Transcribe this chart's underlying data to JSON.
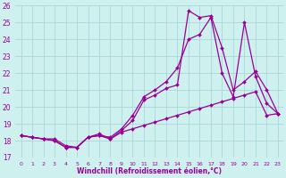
{
  "xlabel": "Windchill (Refroidissement éolien,°C)",
  "xlim_min": -0.5,
  "xlim_max": 23.5,
  "ylim_min": 17,
  "ylim_max": 26,
  "yticks": [
    17,
    18,
    19,
    20,
    21,
    22,
    23,
    24,
    25,
    26
  ],
  "xticks": [
    0,
    1,
    2,
    3,
    4,
    5,
    6,
    7,
    8,
    9,
    10,
    11,
    12,
    13,
    14,
    15,
    16,
    17,
    18,
    19,
    20,
    21,
    22,
    23
  ],
  "bg_color": "#cef0ee",
  "grid_color": "#a8d8d8",
  "line_color": "#990099",
  "series": [
    {
      "comment": "line1: peaks at 15~25.7, 16~25.3",
      "x": [
        0,
        1,
        2,
        3,
        4,
        5,
        6,
        7,
        8,
        9,
        10,
        11,
        12,
        13,
        14,
        15,
        16,
        17,
        18,
        19,
        20,
        21,
        22,
        23
      ],
      "y": [
        18.3,
        18.2,
        18.1,
        18.1,
        17.7,
        17.6,
        18.2,
        18.4,
        18.1,
        18.6,
        19.2,
        20.4,
        20.7,
        21.1,
        21.3,
        25.7,
        25.3,
        25.4,
        23.5,
        21.0,
        21.5,
        22.1,
        21.0,
        19.6
      ]
    },
    {
      "x": [
        0,
        1,
        2,
        3,
        4,
        5,
        6,
        7,
        8,
        9,
        10,
        11,
        12,
        13,
        14,
        15,
        16,
        17,
        18,
        19,
        20,
        21,
        22,
        23
      ],
      "y": [
        18.3,
        18.2,
        18.1,
        18.0,
        17.6,
        17.6,
        18.2,
        18.3,
        18.2,
        18.7,
        19.5,
        20.6,
        21.0,
        21.5,
        22.3,
        24.0,
        24.3,
        25.3,
        22.0,
        20.6,
        25.0,
        21.8,
        20.2,
        19.6
      ]
    },
    {
      "x": [
        0,
        1,
        2,
        3,
        4,
        5,
        6,
        7,
        8,
        9,
        10,
        11,
        12,
        13,
        14,
        15,
        16,
        17,
        18,
        19,
        20,
        21,
        22,
        23
      ],
      "y": [
        18.3,
        18.2,
        18.1,
        18.0,
        17.6,
        17.6,
        18.2,
        18.3,
        18.1,
        18.5,
        18.7,
        18.9,
        19.1,
        19.3,
        19.5,
        19.7,
        19.9,
        20.1,
        20.3,
        20.5,
        20.7,
        20.9,
        19.5,
        19.6
      ]
    }
  ]
}
